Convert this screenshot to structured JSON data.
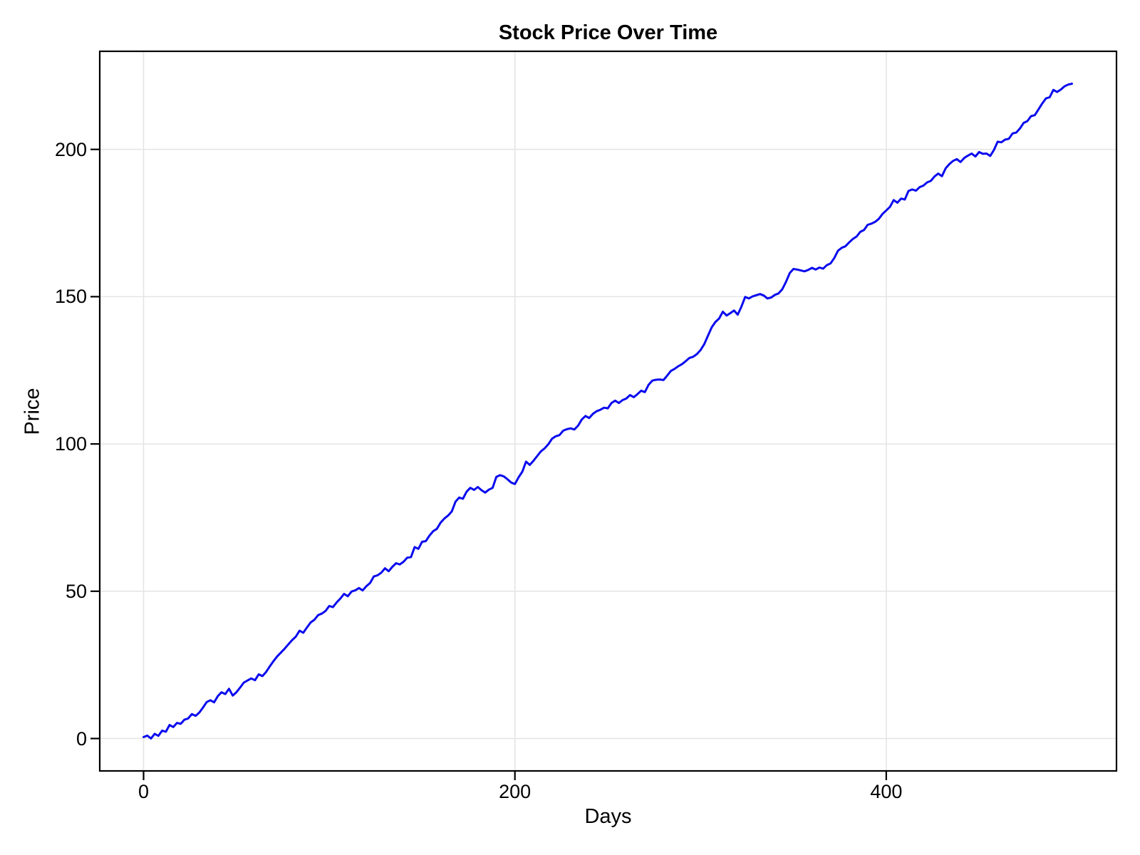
{
  "chart_data": {
    "type": "line",
    "title": "Stock Price Over Time",
    "xlabel": "Days",
    "ylabel": "Price",
    "xlim": [
      -23.6,
      524
    ],
    "ylim": [
      -11,
      233.3
    ],
    "xticks": [
      0,
      200,
      400
    ],
    "yticks": [
      0,
      50,
      100,
      150,
      200
    ],
    "grid": true,
    "legend": "none",
    "colors": {
      "axis": "#000000",
      "grid": "#e4e4e4",
      "text": "#000000"
    },
    "series": [
      {
        "name": "price",
        "color": "#0a0aee",
        "x_start": 0,
        "x_step": 2,
        "values": [
          0.5,
          1.0,
          0.0,
          1.6,
          0.9,
          2.7,
          2.3,
          4.6,
          3.9,
          5.3,
          5.0,
          6.4,
          6.8,
          8.3,
          7.7,
          8.8,
          10.5,
          12.4,
          13.0,
          12.3,
          14.4,
          15.7,
          15.1,
          16.9,
          14.6,
          15.7,
          17.3,
          19.0,
          19.7,
          20.4,
          19.8,
          21.8,
          21.2,
          22.6,
          24.5,
          26.3,
          27.9,
          29.2,
          30.5,
          32.0,
          33.4,
          34.6,
          36.6,
          35.9,
          37.7,
          39.4,
          40.3,
          41.9,
          42.4,
          43.3,
          45.0,
          44.6,
          46.2,
          47.5,
          49.1,
          48.3,
          49.9,
          50.3,
          51.1,
          50.3,
          51.7,
          52.8,
          55.0,
          55.4,
          56.3,
          57.8,
          56.8,
          58.3,
          59.5,
          59.1,
          60.0,
          61.4,
          61.6,
          65.0,
          64.4,
          66.8,
          67.0,
          68.9,
          70.4,
          71.2,
          73.3,
          74.7,
          75.7,
          77.1,
          80.4,
          81.8,
          81.4,
          83.8,
          85.1,
          84.4,
          85.4,
          84.3,
          83.5,
          84.5,
          85.1,
          88.8,
          89.4,
          89.0,
          88.0,
          86.9,
          86.4,
          88.7,
          90.6,
          94.0,
          92.9,
          94.3,
          95.9,
          97.5,
          98.5,
          99.9,
          101.8,
          102.6,
          103.0,
          104.5,
          105.0,
          105.3,
          104.9,
          106.2,
          108.3,
          109.5,
          108.8,
          110.2,
          111.1,
          111.6,
          112.3,
          112.1,
          113.9,
          114.7,
          113.9,
          114.9,
          115.4,
          116.6,
          115.9,
          116.9,
          118.1,
          117.6,
          120.1,
          121.5,
          121.8,
          121.9,
          121.7,
          123.2,
          124.8,
          125.5,
          126.4,
          127.1,
          128.1,
          129.2,
          129.6,
          130.5,
          131.9,
          133.9,
          136.8,
          139.6,
          141.4,
          142.6,
          144.9,
          143.6,
          144.4,
          145.3,
          143.9,
          146.6,
          149.9,
          149.4,
          150.1,
          150.5,
          150.9,
          150.4,
          149.4,
          149.7,
          150.6,
          151.1,
          152.5,
          155.0,
          158.0,
          159.4,
          159.2,
          158.9,
          158.6,
          159.1,
          159.8,
          159.2,
          159.9,
          159.5,
          160.7,
          161.3,
          163.1,
          165.6,
          166.6,
          167.1,
          168.4,
          169.6,
          170.4,
          172.0,
          172.6,
          174.4,
          174.8,
          175.4,
          176.4,
          178.1,
          179.3,
          180.5,
          182.8,
          181.9,
          183.3,
          183.0,
          185.9,
          186.4,
          186.0,
          187.2,
          187.7,
          188.8,
          189.3,
          190.8,
          191.8,
          190.9,
          193.6,
          195.0,
          196.1,
          196.7,
          195.7,
          197.1,
          197.9,
          198.6,
          197.6,
          199.1,
          198.5,
          198.6,
          197.8,
          199.8,
          202.6,
          202.4,
          203.3,
          203.6,
          205.4,
          205.7,
          207.1,
          209.0,
          209.6,
          211.3,
          211.6,
          213.6,
          215.6,
          217.3,
          217.7,
          220.2,
          219.5,
          220.3,
          221.4,
          222.0,
          222.3
        ]
      }
    ]
  }
}
